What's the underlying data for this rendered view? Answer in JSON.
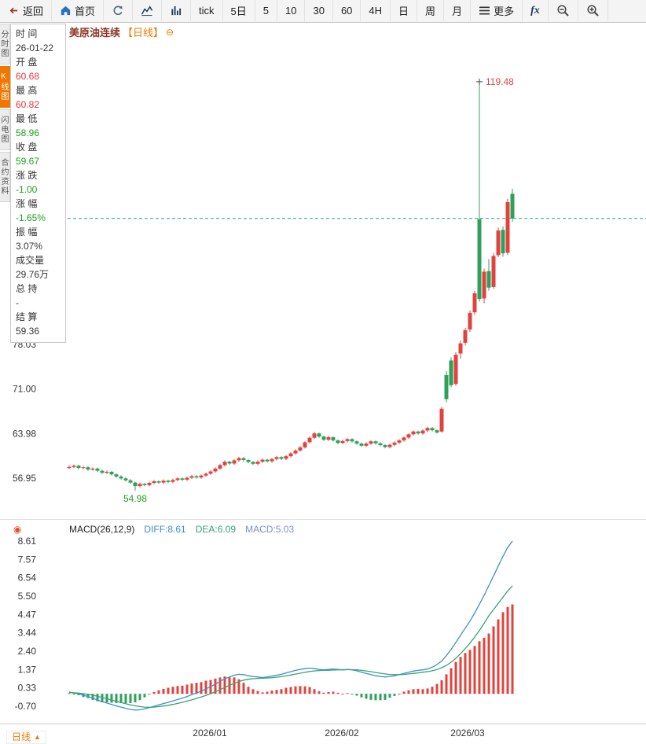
{
  "toolbar": {
    "back_label": "返回",
    "home_label": "首页",
    "tick_label": "tick",
    "five_day_label": "5日",
    "periods": [
      "5",
      "10",
      "30",
      "60",
      "4H",
      "日",
      "周",
      "月"
    ],
    "more_label": "更多",
    "fx_label": "fx"
  },
  "side_tabs": [
    {
      "label": "分时图",
      "active": false
    },
    {
      "label": "K线图",
      "active": true
    },
    {
      "label": "闪电图",
      "active": false
    },
    {
      "label": "合约资料",
      "active": false
    }
  ],
  "info_panel": {
    "rows": [
      {
        "label": "时 间",
        "value": "26-01-22",
        "color": "#333333"
      },
      {
        "label": "开 盘",
        "value": "60.68",
        "color": "#e23636"
      },
      {
        "label": "最 高",
        "value": "60.82",
        "color": "#e23636"
      },
      {
        "label": "最 低",
        "value": "58.96",
        "color": "#21a121"
      },
      {
        "label": "收 盘",
        "value": "59.67",
        "color": "#21a121"
      },
      {
        "label": "涨 跌",
        "value": "-1.00",
        "color": "#21a121"
      },
      {
        "label": "涨 幅",
        "value": "-1.65%",
        "color": "#21a121"
      },
      {
        "label": "振 幅",
        "value": "3.07%",
        "color": "#333333"
      },
      {
        "label": "成交量",
        "value": "29.76万",
        "color": "#333333"
      },
      {
        "label": "总 持",
        "value": "-",
        "color": "#333333"
      },
      {
        "label": "结 算",
        "value": "59.36",
        "color": "#333333"
      }
    ]
  },
  "chart_header": {
    "symbol": "美原油连续",
    "period_tag": "【日线】",
    "accent": "#f07800"
  },
  "icons": {
    "collapse": "⊖",
    "indicator": "◉"
  },
  "bottom_bar": {
    "period_tab": "日线",
    "arrow": "▲"
  },
  "chart_data": {
    "type": "candlestick+macd",
    "title": "美原油连续 日线",
    "colors": {
      "up": "#e0433e",
      "down": "#2fa05c",
      "diff_line": "#3d8fc9",
      "dea_line": "#3aa274",
      "hist_pos": "#e0433e",
      "hist_neg": "#2fa05c",
      "last_price_line": "#2a9d8f",
      "macd_text": "#7a8fd4"
    },
    "price_axis": {
      "ticks": [
        78.03,
        71.0,
        63.98,
        56.95
      ],
      "high_annotation": "119.48",
      "low_annotation": "54.98",
      "last_price": 97.9
    },
    "macd_axis": {
      "ticks": [
        8.61,
        7.57,
        6.54,
        5.5,
        4.47,
        3.44,
        2.4,
        1.37,
        0.33,
        -0.7
      ]
    },
    "x_axis": {
      "labels": [
        "2026/01",
        "2026/02",
        "2026/03"
      ]
    },
    "macd_header": {
      "title": "MACD(26,12,9)",
      "diff_label": "DIFF:8.61",
      "dea_label": "DEA:6.09",
      "macd_label": "MACD:5.03"
    },
    "candles": [
      [
        58.55,
        58.95,
        58.35,
        58.7
      ],
      [
        58.7,
        59.1,
        58.5,
        58.9
      ],
      [
        58.9,
        59.05,
        58.35,
        58.55
      ],
      [
        58.55,
        58.85,
        58.35,
        58.65
      ],
      [
        58.65,
        58.8,
        58.1,
        58.3
      ],
      [
        58.3,
        58.65,
        58.1,
        58.45
      ],
      [
        58.45,
        58.6,
        57.9,
        58.1
      ],
      [
        58.1,
        58.3,
        57.6,
        57.8
      ],
      [
        57.8,
        58.15,
        57.6,
        57.95
      ],
      [
        57.95,
        58.1,
        57.35,
        57.55
      ],
      [
        57.55,
        57.75,
        57.0,
        57.2
      ],
      [
        57.2,
        57.4,
        56.7,
        56.9
      ],
      [
        56.9,
        57.1,
        56.4,
        56.6
      ],
      [
        56.6,
        56.8,
        56.05,
        56.25
      ],
      [
        56.25,
        56.4,
        54.98,
        55.7
      ],
      [
        55.7,
        56.25,
        55.5,
        56.05
      ],
      [
        56.05,
        56.2,
        55.65,
        55.85
      ],
      [
        55.85,
        56.4,
        55.65,
        56.2
      ],
      [
        56.2,
        56.65,
        56.0,
        56.45
      ],
      [
        56.45,
        56.6,
        56.05,
        56.25
      ],
      [
        56.25,
        56.75,
        56.05,
        56.55
      ],
      [
        56.55,
        56.7,
        56.15,
        56.35
      ],
      [
        56.35,
        56.85,
        56.15,
        56.65
      ],
      [
        56.65,
        57.1,
        56.45,
        56.9
      ],
      [
        56.9,
        57.05,
        56.5,
        56.7
      ],
      [
        56.7,
        57.2,
        56.5,
        57.0
      ],
      [
        57.0,
        57.45,
        56.8,
        57.25
      ],
      [
        57.25,
        57.4,
        56.85,
        57.05
      ],
      [
        57.05,
        57.55,
        56.85,
        57.35
      ],
      [
        57.35,
        57.85,
        57.15,
        57.65
      ],
      [
        57.65,
        58.2,
        57.45,
        58.0
      ],
      [
        58.0,
        58.65,
        57.8,
        58.45
      ],
      [
        58.45,
        59.2,
        58.25,
        59.0
      ],
      [
        59.0,
        59.75,
        58.8,
        59.55
      ],
      [
        59.55,
        59.7,
        59.05,
        59.25
      ],
      [
        59.25,
        59.95,
        59.05,
        59.75
      ],
      [
        59.75,
        60.3,
        59.55,
        60.1
      ],
      [
        60.1,
        60.25,
        59.6,
        59.8
      ],
      [
        59.8,
        59.95,
        59.3,
        59.5
      ],
      [
        59.5,
        59.65,
        59.0,
        59.2
      ],
      [
        59.2,
        59.75,
        59.0,
        59.55
      ],
      [
        59.55,
        60.05,
        59.35,
        59.85
      ],
      [
        59.85,
        60.0,
        59.4,
        59.6
      ],
      [
        59.6,
        60.15,
        59.4,
        59.95
      ],
      [
        59.95,
        60.45,
        59.75,
        60.25
      ],
      [
        60.25,
        60.4,
        59.8,
        60.0
      ],
      [
        60.0,
        60.6,
        59.8,
        60.4
      ],
      [
        60.4,
        61.05,
        60.2,
        60.85
      ],
      [
        60.85,
        61.5,
        60.65,
        61.3
      ],
      [
        61.3,
        62.0,
        61.1,
        61.8
      ],
      [
        61.8,
        62.8,
        61.6,
        62.6
      ],
      [
        62.6,
        63.5,
        62.4,
        63.3
      ],
      [
        63.3,
        64.25,
        63.1,
        64.0
      ],
      [
        64.0,
        64.15,
        63.3,
        63.5
      ],
      [
        63.5,
        63.65,
        62.8,
        63.0
      ],
      [
        63.0,
        63.6,
        62.8,
        63.4
      ],
      [
        63.4,
        63.55,
        62.7,
        62.9
      ],
      [
        62.9,
        63.05,
        62.3,
        62.5
      ],
      [
        62.5,
        63.0,
        62.3,
        62.8
      ],
      [
        62.8,
        63.3,
        62.6,
        63.1
      ],
      [
        63.1,
        63.25,
        62.55,
        62.75
      ],
      [
        62.75,
        62.9,
        62.2,
        62.4
      ],
      [
        62.4,
        62.55,
        61.85,
        62.05
      ],
      [
        62.05,
        62.6,
        61.85,
        62.4
      ],
      [
        62.4,
        62.95,
        62.2,
        62.75
      ],
      [
        62.75,
        62.9,
        62.25,
        62.45
      ],
      [
        62.45,
        62.6,
        61.95,
        62.15
      ],
      [
        62.15,
        62.3,
        61.65,
        61.85
      ],
      [
        61.85,
        62.4,
        61.65,
        62.2
      ],
      [
        62.2,
        62.75,
        62.0,
        62.55
      ],
      [
        62.55,
        63.1,
        62.35,
        62.9
      ],
      [
        62.9,
        63.55,
        62.7,
        63.35
      ],
      [
        63.35,
        64.05,
        63.15,
        63.85
      ],
      [
        63.85,
        64.5,
        63.65,
        64.3
      ],
      [
        64.3,
        64.45,
        63.8,
        64.0
      ],
      [
        64.0,
        64.65,
        63.8,
        64.45
      ],
      [
        64.45,
        65.05,
        64.25,
        64.85
      ],
      [
        64.85,
        65.0,
        64.3,
        64.5
      ],
      [
        64.5,
        64.65,
        63.95,
        64.15
      ],
      [
        64.3,
        68.2,
        64.1,
        67.9
      ],
      [
        73.2,
        73.8,
        68.9,
        69.4
      ],
      [
        75.5,
        76.0,
        71.3,
        71.6
      ],
      [
        71.8,
        76.8,
        71.5,
        76.4
      ],
      [
        76.6,
        78.6,
        75.8,
        78.2
      ],
      [
        78.3,
        80.6,
        77.9,
        80.3
      ],
      [
        80.4,
        83.4,
        80.0,
        83.0
      ],
      [
        83.1,
        86.5,
        82.7,
        86.1
      ],
      [
        97.8,
        119.48,
        84.8,
        85.2
      ],
      [
        85.3,
        90.0,
        84.5,
        89.5
      ],
      [
        89.6,
        91.5,
        86.5,
        87.0
      ],
      [
        87.1,
        92.5,
        86.8,
        92.0
      ],
      [
        92.1,
        96.5,
        91.8,
        96.0
      ],
      [
        96.1,
        96.6,
        91.9,
        92.4
      ],
      [
        92.5,
        101.0,
        92.2,
        100.5
      ],
      [
        101.8,
        102.6,
        97.4,
        97.9
      ]
    ],
    "diff": [
      0.1,
      0.05,
      0.0,
      -0.08,
      -0.15,
      -0.25,
      -0.35,
      -0.45,
      -0.52,
      -0.6,
      -0.68,
      -0.75,
      -0.82,
      -0.88,
      -0.92,
      -0.9,
      -0.85,
      -0.78,
      -0.7,
      -0.62,
      -0.55,
      -0.48,
      -0.4,
      -0.32,
      -0.25,
      -0.15,
      -0.05,
      0.05,
      0.15,
      0.28,
      0.4,
      0.55,
      0.7,
      0.85,
      0.95,
      1.05,
      1.1,
      1.08,
      1.02,
      0.98,
      0.95,
      0.92,
      0.95,
      1.0,
      1.05,
      1.1,
      1.18,
      1.25,
      1.32,
      1.38,
      1.42,
      1.45,
      1.42,
      1.38,
      1.35,
      1.38,
      1.4,
      1.38,
      1.35,
      1.38,
      1.35,
      1.3,
      1.22,
      1.15,
      1.08,
      1.02,
      0.98,
      0.95,
      0.98,
      1.02,
      1.08,
      1.15,
      1.22,
      1.28,
      1.32,
      1.35,
      1.4,
      1.5,
      1.65,
      1.85,
      2.15,
      2.5,
      2.9,
      3.3,
      3.7,
      4.1,
      4.55,
      5.05,
      5.55,
      6.1,
      6.65,
      7.2,
      7.75,
      8.25,
      8.61
    ],
    "dea": [
      0.08,
      0.06,
      0.04,
      0.01,
      -0.03,
      -0.08,
      -0.14,
      -0.21,
      -0.28,
      -0.35,
      -0.42,
      -0.49,
      -0.56,
      -0.62,
      -0.68,
      -0.72,
      -0.75,
      -0.76,
      -0.75,
      -0.72,
      -0.69,
      -0.65,
      -0.6,
      -0.54,
      -0.48,
      -0.41,
      -0.34,
      -0.26,
      -0.18,
      -0.09,
      0.01,
      0.12,
      0.24,
      0.36,
      0.48,
      0.59,
      0.69,
      0.77,
      0.82,
      0.85,
      0.87,
      0.88,
      0.89,
      0.91,
      0.94,
      0.97,
      1.01,
      1.06,
      1.11,
      1.16,
      1.21,
      1.26,
      1.29,
      1.31,
      1.32,
      1.33,
      1.34,
      1.35,
      1.35,
      1.36,
      1.36,
      1.35,
      1.32,
      1.29,
      1.25,
      1.2,
      1.16,
      1.12,
      1.09,
      1.08,
      1.08,
      1.09,
      1.12,
      1.15,
      1.18,
      1.22,
      1.25,
      1.3,
      1.37,
      1.47,
      1.6,
      1.78,
      2.0,
      2.26,
      2.55,
      2.86,
      3.2,
      3.57,
      3.97,
      4.4,
      4.75,
      5.1,
      5.45,
      5.8,
      6.09
    ]
  }
}
